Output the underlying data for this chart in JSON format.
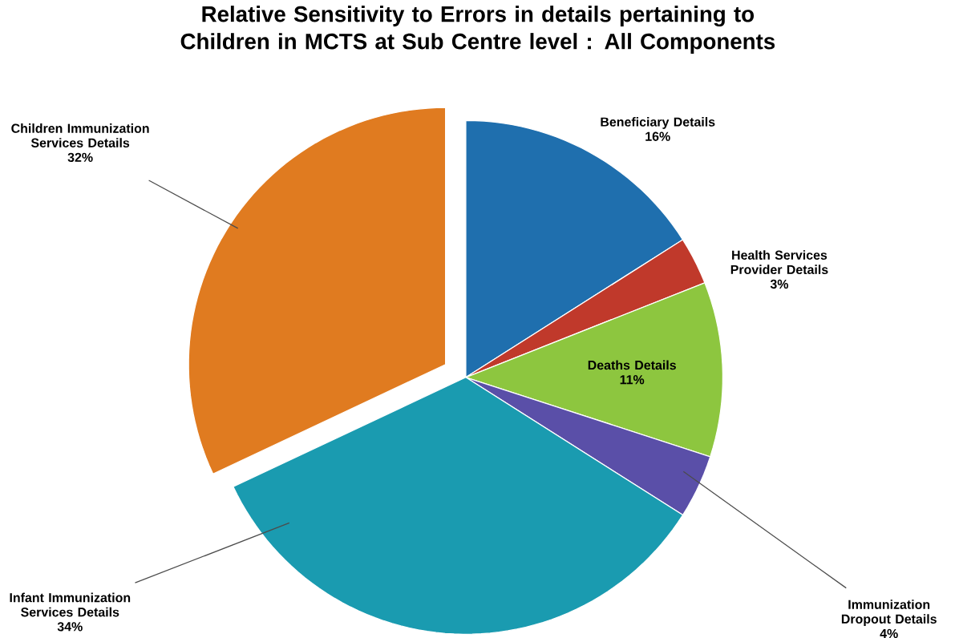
{
  "chart_data": {
    "type": "pie",
    "title": "Relative Sensitivity to Errors in details pertaining to Children in MCTS at Sub Centre level : All Components",
    "categories": [
      "Beneficiary Details",
      "Health Services Provider Details",
      "Deaths Details",
      "Immunization Dropout Details",
      "Infant Immunization Services Details",
      "Children Immunization Services Details"
    ],
    "values": [
      16,
      3,
      11,
      4,
      34,
      32
    ],
    "value_labels": [
      "16%",
      "3%",
      "11%",
      "4%",
      "34%",
      "32%"
    ],
    "colors": [
      "#1f6fae",
      "#c0392b",
      "#8dc63f",
      "#5a4fa8",
      "#1a9bb0",
      "#e07b20"
    ]
  }
}
